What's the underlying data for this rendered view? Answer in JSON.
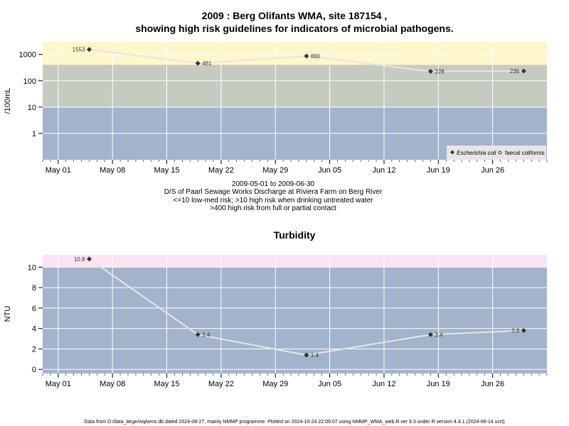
{
  "title_line1": "2009 : Berg Olifants WMA, site 187154 ,",
  "title_line2": "showing high risk guidelines for indicators of microbial pathogens.",
  "subtitle": [
    "2009-05-01 to 2009-06-30",
    "D/S of Paarl Sewage Works Discharge at Riviera Farm on Berg River",
    "<=10 low-med risk; >10 high risk when drinking untreated water",
    ">400 high risk from full or partial contact"
  ],
  "footer": "Data from D:/data_large/wq/wms.db dated 2024-08-27, mainly NMMP programme. Plotted on 2024-10-24 22:09:07 using NMMP_WMA_web.R ver 9.3 under R version 4.4.1 (2024-06-14 ucrt)",
  "colors": {
    "band_high": "#fdf7c9",
    "band_mid": "#c5cbc0",
    "band_low": "#a3b3cc",
    "band_turb_high": "#fbe3f4",
    "line": "#e6e6e6",
    "point": "#333333"
  },
  "chart_data": [
    {
      "type": "line",
      "title": "",
      "ylabel": "/100mL",
      "yscale": "log",
      "yticks": [
        "1",
        "10",
        "100",
        "1000"
      ],
      "xticks": [
        "May 01",
        "May 08",
        "May 15",
        "May 22",
        "May 29",
        "Jun 05",
        "Jun 12",
        "Jun 19",
        "Jun 26"
      ],
      "xlim": [
        "2009-04-29",
        "2009-07-03"
      ],
      "grid": true,
      "legend_position": "bottom-right",
      "bands": [
        {
          "from": 0.1,
          "to": 10,
          "meaning": "low-med risk"
        },
        {
          "from": 10,
          "to": 400,
          "meaning": "high risk when drinking untreated water"
        },
        {
          "from": 400,
          "to": 3000,
          "meaning": "high risk from full or partial contact"
        }
      ],
      "series": [
        {
          "name": "Escherichia coli",
          "marker": "filled-diamond",
          "x": [
            "2009-05-05",
            "2009-05-19",
            "2009-06-02",
            "2009-06-18",
            "2009-06-30"
          ],
          "values": [
            1553,
            461,
            866,
            228,
            236
          ],
          "labels": [
            "1553",
            "461",
            "866",
            "228",
            "236"
          ]
        },
        {
          "name": "faecal coliforms",
          "marker": "open-circle",
          "x": [],
          "values": []
        }
      ]
    },
    {
      "type": "line",
      "title": "Turbidity",
      "ylabel": "NTU",
      "yticks": [
        "0",
        "2",
        "4",
        "6",
        "8",
        "10"
      ],
      "xticks": [
        "May 01",
        "May 08",
        "May 15",
        "May 22",
        "May 29",
        "Jun 05",
        "Jun 12",
        "Jun 19",
        "Jun 26"
      ],
      "xlim": [
        "2009-04-29",
        "2009-07-03"
      ],
      "grid": true,
      "bands": [
        {
          "from": 10,
          "to": 11.2,
          "meaning": "high"
        }
      ],
      "series": [
        {
          "name": "",
          "marker": "filled-diamond",
          "x": [
            "2009-05-05",
            "2009-05-19",
            "2009-06-02",
            "2009-06-18",
            "2009-06-30"
          ],
          "values": [
            10.8,
            3.4,
            1.4,
            3.4,
            3.8
          ],
          "labels": [
            "10.8",
            "3.4",
            "1.4",
            "3.4",
            "3.8"
          ]
        }
      ]
    }
  ]
}
